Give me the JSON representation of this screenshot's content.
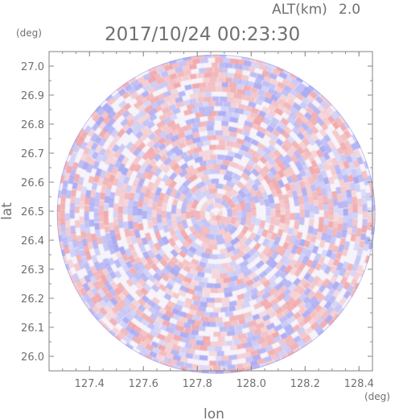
{
  "header": {
    "altitude_label": "ALT(km)",
    "altitude_value": "2.0",
    "timestamp": "2017/10/24 00:23:30"
  },
  "chart_data": {
    "type": "heatmap",
    "title": "2017/10/24 00:23:30",
    "subtitle": "ALT(km) 2.0",
    "xlabel": "lon",
    "ylabel": "lat",
    "x_unit": "(deg)",
    "y_unit": "(deg)",
    "xlim": [
      127.25,
      128.45
    ],
    "ylim": [
      25.95,
      27.05
    ],
    "x_ticks": [
      "127.4",
      "127.6",
      "127.8",
      "128.0",
      "128.2",
      "128.4"
    ],
    "y_ticks": [
      "26.0",
      "26.1",
      "26.2",
      "26.3",
      "26.4",
      "26.5",
      "26.6",
      "26.7",
      "26.8",
      "26.9",
      "27.0"
    ],
    "center": {
      "lon": 127.87,
      "lat": 26.49
    },
    "radius_deg_lat": 0.55,
    "grid": false,
    "colormap": {
      "negative": "#8a8cf0",
      "neutral": "#ffffff",
      "positive": "#f08a8a"
    }
  }
}
